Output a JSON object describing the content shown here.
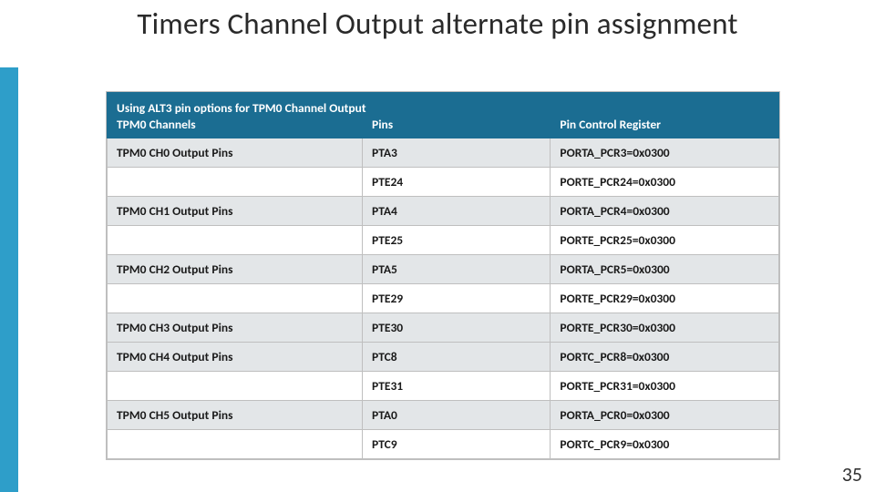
{
  "slide": {
    "title": "Timers Channel Output alternate pin assignment",
    "number": "35"
  },
  "colors": {
    "accent": "#2e9ec9",
    "header_bg": "#1b6d92",
    "row_shade": "#e3e6e8",
    "border": "#bfbfbf"
  },
  "table": {
    "caption": "Using ALT3 pin options for TPM0 Channel Output",
    "columns": [
      "TPM0 Channels",
      "Pins",
      "Pin Control Register"
    ],
    "col_widths_pct": [
      38,
      28,
      34
    ],
    "rows": [
      {
        "shade": true,
        "c0": "TPM0 CH0 Output Pins",
        "c1": "PTA3",
        "c2": "PORTA_PCR3=0x0300"
      },
      {
        "shade": false,
        "c0": "",
        "c1": "PTE24",
        "c2": "PORTE_PCR24=0x0300"
      },
      {
        "shade": true,
        "c0": "TPM0 CH1 Output Pins",
        "c1": "PTA4",
        "c2": "PORTA_PCR4=0x0300"
      },
      {
        "shade": false,
        "c0": "",
        "c1": "PTE25",
        "c2": "PORTE_PCR25=0x0300"
      },
      {
        "shade": true,
        "c0": "TPM0 CH2 Output Pins",
        "c1": "PTA5",
        "c2": "PORTA_PCR5=0x0300"
      },
      {
        "shade": false,
        "c0": "",
        "c1": "PTE29",
        "c2": "PORTE_PCR29=0x0300"
      },
      {
        "shade": true,
        "c0": "TPM0 CH3 Output Pins",
        "c1": "PTE30",
        "c2": "PORTE_PCR30=0x0300"
      },
      {
        "shade": true,
        "c0": "TPM0 CH4 Output Pins",
        "c1": "PTC8",
        "c2": "PORTC_PCR8=0x0300"
      },
      {
        "shade": false,
        "c0": "",
        "c1": "PTE31",
        "c2": "PORTE_PCR31=0x0300"
      },
      {
        "shade": true,
        "c0": "TPM0 CH5 Output Pins",
        "c1": "PTA0",
        "c2": "PORTA_PCR0=0x0300"
      },
      {
        "shade": false,
        "c0": "",
        "c1": "PTC9",
        "c2": "PORTC_PCR9=0x0300"
      }
    ]
  }
}
